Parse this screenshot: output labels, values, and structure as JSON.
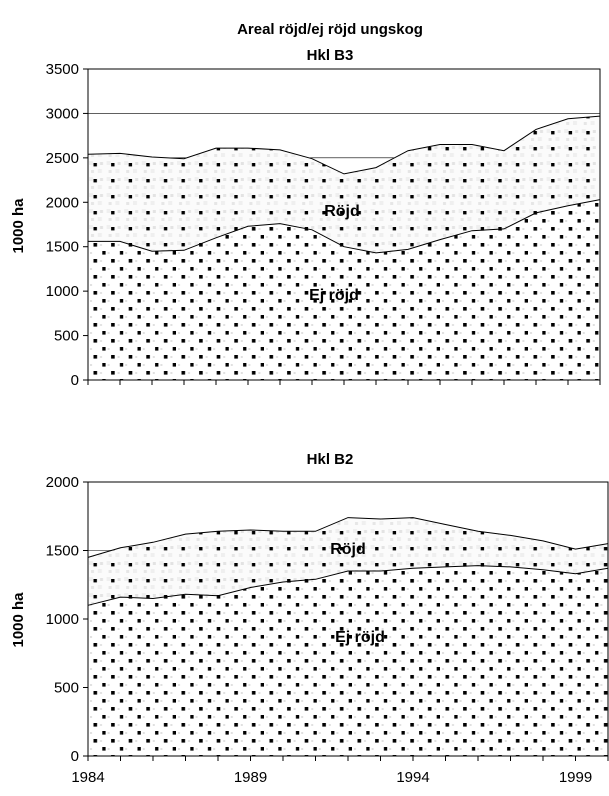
{
  "figure_title": "Areal röjd/ej röjd ungskog",
  "chart_data": [
    {
      "type": "area",
      "stacked": true,
      "title": "Hkl B3",
      "ylabel": "1000 ha",
      "xlabel": "",
      "ylim": [
        0,
        3500
      ],
      "yticks": [
        0,
        500,
        1000,
        1500,
        2000,
        2500,
        3000,
        3500
      ],
      "xticklabels": [],
      "gridlines": [
        2500,
        3000
      ],
      "x": [
        1984,
        1985,
        1986,
        1987,
        1988,
        1989,
        1990,
        1991,
        1992,
        1993,
        1994,
        1995,
        1996,
        1997,
        1998,
        1999,
        2000
      ],
      "series": [
        {
          "name": "Ej röjd",
          "values": [
            1560,
            1560,
            1450,
            1460,
            1600,
            1730,
            1760,
            1690,
            1500,
            1430,
            1470,
            1580,
            1680,
            1700,
            1880,
            1960,
            2030
          ]
        },
        {
          "name": "Röjd",
          "values": [
            980,
            990,
            1060,
            1030,
            1010,
            880,
            830,
            800,
            820,
            960,
            1110,
            1070,
            970,
            880,
            940,
            980,
            940
          ]
        }
      ],
      "annotations": [
        "Röjd",
        "Ej röjd"
      ]
    },
    {
      "type": "area",
      "stacked": true,
      "title": "Hkl B2",
      "ylabel": "1000 ha",
      "xlabel": "",
      "ylim": [
        0,
        2000
      ],
      "yticks": [
        0,
        500,
        1000,
        1500,
        2000
      ],
      "xticklabels": [
        "1984",
        "1989",
        "1994",
        "1999"
      ],
      "gridlines": [
        1500
      ],
      "x": [
        1984,
        1985,
        1986,
        1987,
        1988,
        1989,
        1990,
        1991,
        1992,
        1993,
        1994,
        1995,
        1996,
        1997,
        1998,
        1999,
        2000
      ],
      "series": [
        {
          "name": "Ej röjd",
          "values": [
            1100,
            1160,
            1150,
            1180,
            1170,
            1230,
            1270,
            1290,
            1350,
            1350,
            1370,
            1380,
            1390,
            1380,
            1360,
            1330,
            1370
          ]
        },
        {
          "name": "Röjd",
          "values": [
            350,
            360,
            410,
            440,
            470,
            420,
            370,
            350,
            390,
            380,
            370,
            310,
            250,
            230,
            210,
            180,
            180
          ]
        }
      ],
      "annotations": [
        "Röjd",
        "Ej röjd"
      ]
    }
  ]
}
